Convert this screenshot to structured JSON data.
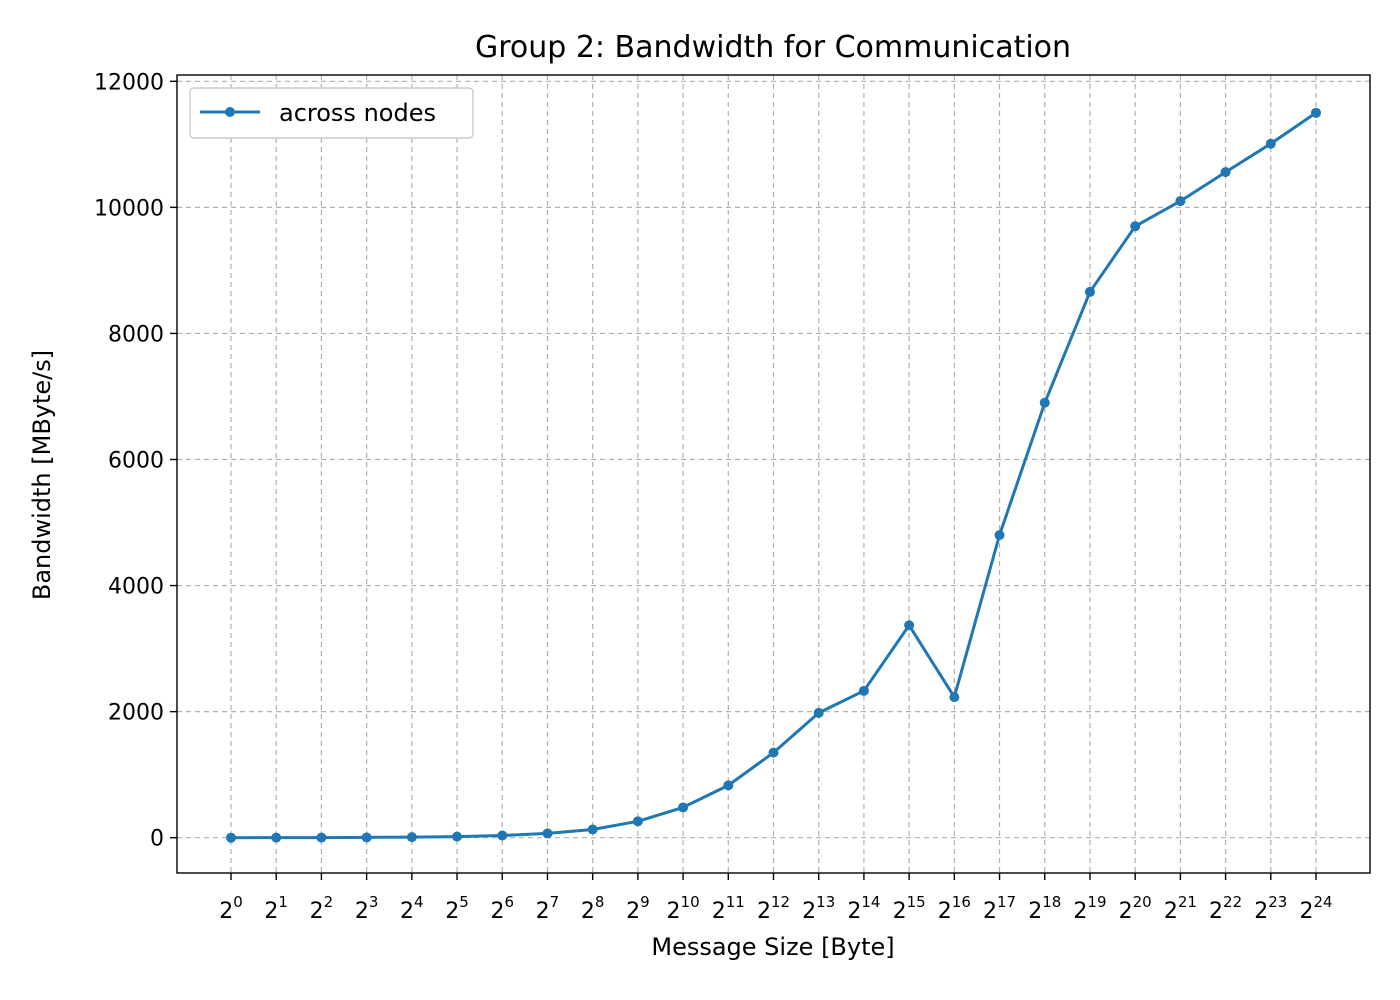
{
  "chart_data": {
    "type": "line",
    "title": "Group 2:  Bandwidth for Communication",
    "xlabel": "Message Size [Byte]",
    "ylabel": "Bandwidth [MByte/s]",
    "x_tick_base": "2",
    "x_exponents": [
      "0",
      "1",
      "2",
      "3",
      "4",
      "5",
      "6",
      "7",
      "8",
      "9",
      "10",
      "11",
      "12",
      "13",
      "14",
      "15",
      "16",
      "17",
      "18",
      "19",
      "20",
      "21",
      "22",
      "23",
      "24"
    ],
    "yticks": [
      0,
      2000,
      4000,
      6000,
      8000,
      10000,
      12000
    ],
    "ylim": [
      -560,
      12100
    ],
    "grid": true,
    "legend_position": "top-left",
    "series": [
      {
        "name": "across nodes",
        "color": "#1f77b4",
        "values": [
          0,
          1,
          2,
          4,
          9,
          17,
          35,
          68,
          130,
          260,
          480,
          830,
          1350,
          1980,
          2330,
          3370,
          2230,
          4800,
          6900,
          8660,
          9700,
          10100,
          10560,
          11010,
          11500
        ]
      }
    ]
  }
}
